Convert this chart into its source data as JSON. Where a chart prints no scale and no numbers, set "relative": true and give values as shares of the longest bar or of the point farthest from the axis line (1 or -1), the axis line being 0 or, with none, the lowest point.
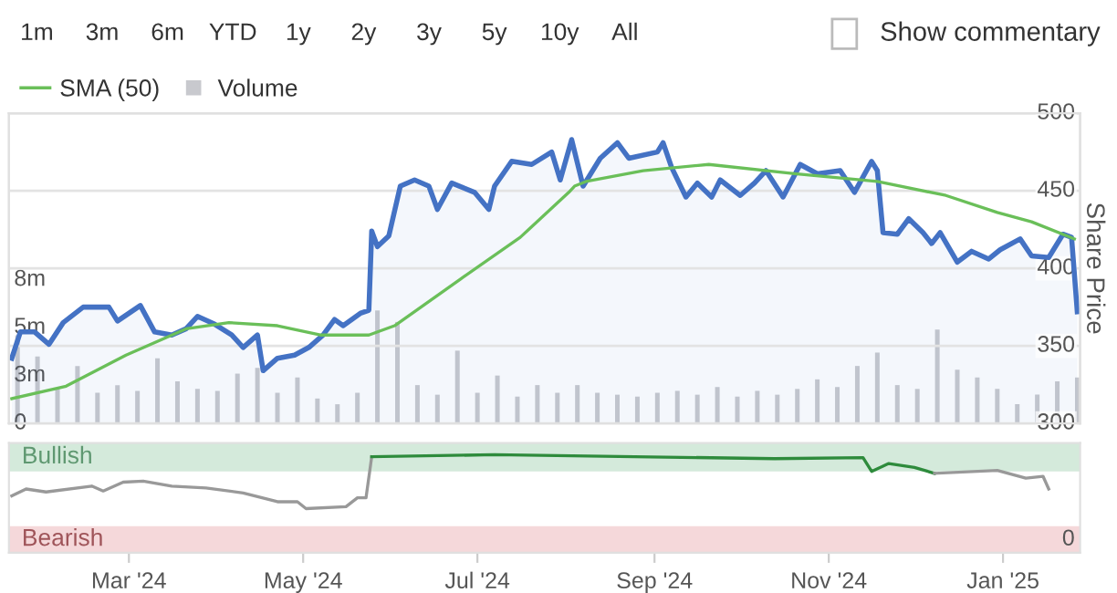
{
  "chart_data": [
    {
      "type": "line",
      "annotations": [
        "1m",
        "3m",
        "6m",
        "YTD",
        "1y",
        "2y",
        "3y",
        "5y",
        "10y",
        "All",
        "Show commentary"
      ],
      "ylabel": "Share Price",
      "xlim": [
        "2024-01-19",
        "2025-01-28"
      ],
      "ylim": [
        300,
        500
      ],
      "yticks": [
        300,
        350,
        400,
        450,
        500
      ],
      "y2lim": [
        0,
        16.2
      ],
      "y2ticks": [
        0,
        {
          "value": 2.5,
          "label": "3m"
        },
        {
          "value": 5,
          "label": "5m"
        },
        {
          "value": 7.5,
          "label": "8m"
        }
      ],
      "grid": "y",
      "legend": "top left",
      "tick_labels": "y",
      "series": [
        {
          "type": "area",
          "color": "#4472c4",
          "x": [
            "2024-01-20",
            "2024-01-23",
            "2024-01-28",
            "2024-02-02",
            "2024-02-07",
            "2024-02-14",
            "2024-02-23",
            "2024-02-26",
            "2024-03-05",
            "2024-03-10",
            "2024-03-16",
            "2024-03-21",
            "2024-03-25",
            "2024-03-31",
            "2024-04-06",
            "2024-04-10",
            "2024-04-15",
            "2024-04-17",
            "2024-04-22",
            "2024-04-28",
            "2024-05-03",
            "2024-05-08",
            "2024-05-12",
            "2024-05-15",
            "2024-05-21",
            "2024-05-24",
            "2024-05-25",
            "2024-05-27",
            "2024-05-31",
            "2024-06-04",
            "2024-06-09",
            "2024-06-14",
            "2024-06-17",
            "2024-06-22",
            "2024-06-30",
            "2024-07-05",
            "2024-07-07",
            "2024-07-13",
            "2024-07-20",
            "2024-07-27",
            "2024-07-30",
            "2024-08-03",
            "2024-08-07",
            "2024-08-13",
            "2024-08-19",
            "2024-08-23",
            "2024-09-02",
            "2024-09-04",
            "2024-09-07",
            "2024-09-12",
            "2024-09-16",
            "2024-09-21",
            "2024-09-24",
            "2024-10-01",
            "2024-10-06",
            "2024-10-10",
            "2024-10-16",
            "2024-10-22",
            "2024-10-28",
            "2024-11-05",
            "2024-11-10",
            "2024-11-16",
            "2024-11-18",
            "2024-11-20",
            "2024-11-25",
            "2024-11-29",
            "2024-12-04",
            "2024-12-07",
            "2024-12-10",
            "2024-12-16",
            "2024-12-21",
            "2024-12-27",
            "2024-12-31",
            "2025-01-07",
            "2025-01-11",
            "2025-01-17",
            "2025-01-22",
            "2025-01-25",
            "2025-01-27"
          ],
          "values": [
            342,
            359,
            359,
            351,
            365,
            375,
            375,
            366,
            376,
            359,
            357,
            361,
            369,
            364,
            357,
            349,
            357,
            334,
            342,
            344,
            349,
            357,
            367,
            363,
            371,
            373,
            424,
            414,
            421,
            453,
            457,
            453,
            438,
            455,
            449,
            438,
            453,
            469,
            467,
            475,
            457,
            483,
            453,
            471,
            481,
            471,
            475,
            481,
            465,
            446,
            455,
            446,
            457,
            447,
            455,
            463,
            446,
            467,
            461,
            463,
            449,
            469,
            463,
            423,
            422,
            432,
            423,
            416,
            423,
            404,
            411,
            406,
            412,
            419,
            408,
            407,
            422,
            420,
            372
          ]
        },
        {
          "type": "line",
          "name": "SMA (50)",
          "color": "#6abf59",
          "x": [
            "2024-01-20",
            "2024-02-08",
            "2024-02-29",
            "2024-03-21",
            "2024-04-05",
            "2024-04-22",
            "2024-05-07",
            "2024-05-24",
            "2024-06-02",
            "2024-06-25",
            "2024-07-16",
            "2024-08-02",
            "2024-08-04",
            "2024-08-08",
            "2024-08-28",
            "2024-09-20",
            "2024-10-20",
            "2024-11-18",
            "2024-12-12",
            "2024-12-30",
            "2025-01-11",
            "2025-01-26"
          ],
          "values": [
            316,
            324,
            344,
            361,
            365,
            363,
            357,
            357,
            363,
            393,
            420,
            449,
            453,
            456,
            463,
            467,
            461,
            456,
            447,
            436,
            430,
            419
          ]
        },
        {
          "type": "bar",
          "name": "Volume",
          "axis": "y2",
          "color": "#c8c9ce",
          "x": [
            "2024-01-22",
            "2024-01-29",
            "2024-02-05",
            "2024-02-12",
            "2024-02-19",
            "2024-02-26",
            "2024-03-04",
            "2024-03-11",
            "2024-03-18",
            "2024-03-25",
            "2024-04-01",
            "2024-04-08",
            "2024-04-15",
            "2024-04-22",
            "2024-04-29",
            "2024-05-06",
            "2024-05-13",
            "2024-05-20",
            "2024-05-27",
            "2024-06-03",
            "2024-06-10",
            "2024-06-17",
            "2024-06-24",
            "2024-07-01",
            "2024-07-08",
            "2024-07-15",
            "2024-07-22",
            "2024-07-29",
            "2024-08-05",
            "2024-08-12",
            "2024-08-19",
            "2024-08-26",
            "2024-09-02",
            "2024-09-09",
            "2024-09-16",
            "2024-09-23",
            "2024-09-30",
            "2024-10-07",
            "2024-10-14",
            "2024-10-21",
            "2024-10-28",
            "2024-11-04",
            "2024-11-11",
            "2024-11-18",
            "2024-11-25",
            "2024-12-02",
            "2024-12-09",
            "2024-12-16",
            "2024-12-23",
            "2024-12-30",
            "2025-01-06",
            "2025-01-13",
            "2025-01-20",
            "2025-01-27"
          ],
          "values": [
            4.6,
            3.5,
            1.8,
            3.0,
            1.6,
            2.0,
            1.7,
            3.4,
            2.2,
            1.8,
            1.7,
            2.6,
            2.9,
            1.6,
            2.4,
            1.3,
            1.0,
            1.6,
            5.9,
            5.3,
            2.0,
            1.5,
            3.8,
            1.6,
            2.5,
            1.4,
            2.0,
            1.6,
            2.0,
            1.6,
            1.5,
            1.4,
            1.6,
            1.7,
            1.5,
            1.9,
            1.4,
            1.7,
            1.5,
            1.8,
            2.3,
            1.9,
            3.0,
            3.7,
            2.0,
            1.8,
            4.9,
            2.8,
            2.4,
            1.8,
            1.0,
            1.5,
            2.2,
            2.4
          ]
        }
      ]
    },
    {
      "type": "line",
      "relative": true,
      "annotations": [
        "0"
      ],
      "xlim": [
        "2024-01-19",
        "2025-01-28"
      ],
      "xticks": [
        {
          "value": "2024-03-01",
          "label": "Mar '24"
        },
        {
          "value": "2024-05-01",
          "label": "May '24"
        },
        {
          "value": "2024-07-01",
          "label": "Jul '24"
        },
        {
          "value": "2024-09-01",
          "label": "Sep '24"
        },
        {
          "value": "2024-11-01",
          "label": "Nov '24"
        },
        {
          "value": "2025-01-01",
          "label": "Jan '25"
        }
      ],
      "bands": [
        {
          "axis": "y",
          "from": 0.83,
          "to": 1.12,
          "label": "Bullish",
          "color": "#d4eadb"
        },
        {
          "axis": "y",
          "from": 0,
          "to": 0.27,
          "label": "Bearish",
          "color": "#f5d8da"
        }
      ],
      "series": [
        {
          "color": "#999999",
          "x": [
            "2024-01-20",
            "2024-01-25",
            "2024-02-01",
            "2024-02-17",
            "2024-02-21",
            "2024-02-28",
            "2024-03-06",
            "2024-03-16",
            "2024-03-28",
            "2024-04-10",
            "2024-04-22",
            "2024-04-29",
            "2024-05-02",
            "2024-05-16",
            "2024-05-20",
            "2024-05-23",
            "2024-05-25"
          ],
          "values": [
            0.58,
            0.65,
            0.62,
            0.68,
            0.63,
            0.72,
            0.73,
            0.68,
            0.66,
            0.61,
            0.52,
            0.52,
            0.45,
            0.47,
            0.56,
            0.56,
            0.98
          ]
        },
        {
          "color": "#2e8b3c",
          "x": [
            "2024-05-25",
            "2024-07-07",
            "2024-08-25",
            "2024-10-13",
            "2024-11-13",
            "2024-11-16",
            "2024-11-22",
            "2024-12-01",
            "2024-12-08"
          ],
          "values": [
            0.98,
            1,
            0.98,
            0.96,
            0.97,
            0.83,
            0.91,
            0.87,
            0.81
          ]
        },
        {
          "color": "#999999",
          "x": [
            "2024-12-08",
            "2024-12-30",
            "2025-01-09",
            "2025-01-15",
            "2025-01-17"
          ],
          "values": [
            0.81,
            0.84,
            0.76,
            0.78,
            0.65
          ]
        }
      ]
    }
  ]
}
